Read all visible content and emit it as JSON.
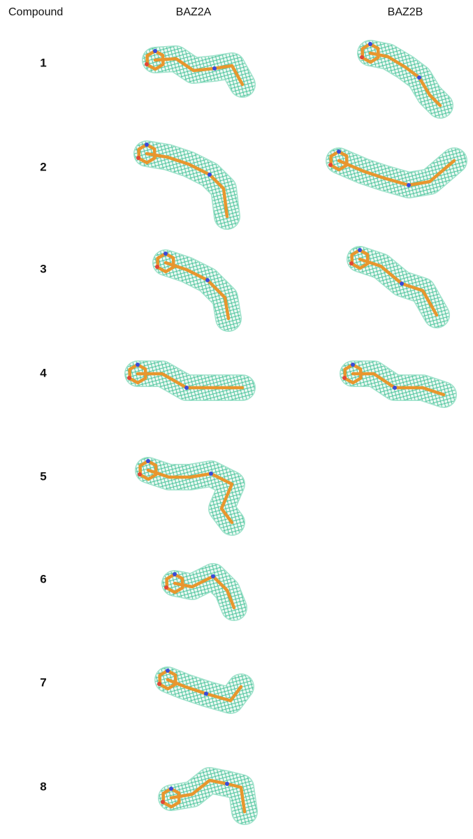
{
  "header": {
    "columns": [
      "Compound",
      "BAZ2A",
      "BAZ2B"
    ]
  },
  "rows": [
    {
      "label": "1"
    },
    {
      "label": "2"
    },
    {
      "label": "3"
    },
    {
      "label": "4"
    },
    {
      "label": "5"
    },
    {
      "label": "6"
    },
    {
      "label": "7"
    },
    {
      "label": "8"
    }
  ]
}
